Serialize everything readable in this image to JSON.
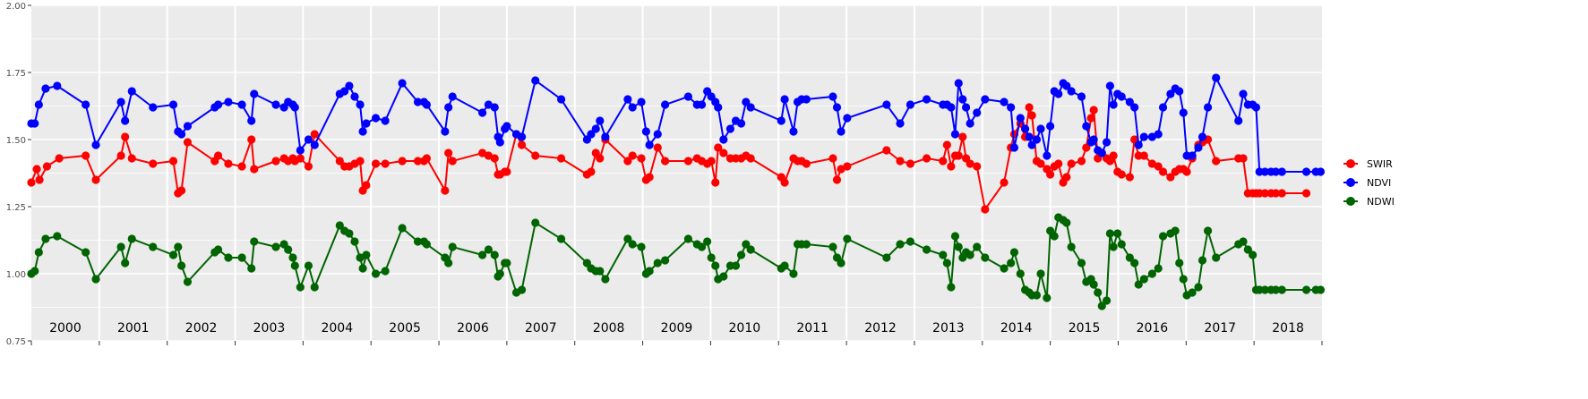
{
  "chart_data": {
    "type": "line",
    "title": "",
    "xlabel": "",
    "ylabel": "",
    "ylim": [
      0.75,
      2.0
    ],
    "yticks": [
      "0.75",
      "1.00",
      "1.25",
      "1.50",
      "1.75",
      "2.00"
    ],
    "xlim": [
      2000.0,
      2019.0
    ],
    "x_tick_labels": [
      "2000",
      "2001",
      "2002",
      "2003",
      "2004",
      "2005",
      "2006",
      "2007",
      "2008",
      "2009",
      "2010",
      "2011",
      "2012",
      "2013",
      "2014",
      "2015",
      "2016",
      "2017",
      "2018"
    ],
    "grid": true,
    "panel_color": "#ebebeb",
    "legend_position": "right",
    "series": [
      {
        "name": "SWIR",
        "color": "#ff0000",
        "x": [
          2000.0,
          2000.08,
          2000.12,
          2000.23,
          2000.41,
          2000.8,
          2000.95,
          2001.32,
          2001.38,
          2001.48,
          2001.79,
          2002.09,
          2002.16,
          2002.21,
          2002.3,
          2002.7,
          2002.75,
          2002.9,
          2003.1,
          2003.24,
          2003.28,
          2003.6,
          2003.72,
          2003.78,
          2003.85,
          2003.88,
          2003.96,
          2004.08,
          2004.17,
          2004.54,
          2004.61,
          2004.68,
          2004.76,
          2004.84,
          2004.88,
          2004.93,
          2005.07,
          2005.21,
          2005.46,
          2005.69,
          2005.78,
          2005.82,
          2006.09,
          2006.14,
          2006.2,
          2006.64,
          2006.73,
          2006.82,
          2006.87,
          2006.9,
          2006.97,
          2007.0,
          2007.14,
          2007.22,
          2007.42,
          2007.8,
          2008.18,
          2008.24,
          2008.31,
          2008.37,
          2008.45,
          2008.78,
          2008.85,
          2008.98,
          2009.05,
          2009.1,
          2009.22,
          2009.33,
          2009.67,
          2009.8,
          2009.87,
          2009.95,
          2010.01,
          2010.07,
          2010.11,
          2010.19,
          2010.29,
          2010.37,
          2010.45,
          2010.52,
          2010.59,
          2011.04,
          2011.09,
          2011.22,
          2011.28,
          2011.34,
          2011.41,
          2011.8,
          2011.86,
          2011.92,
          2012.01,
          2012.59,
          2012.79,
          2012.94,
          2013.18,
          2013.42,
          2013.48,
          2013.54,
          2013.6,
          2013.65,
          2013.71,
          2013.76,
          2013.82,
          2013.92,
          2014.04,
          2014.32,
          2014.42,
          2014.47,
          2014.56,
          2014.63,
          2014.69,
          2014.73,
          2014.8,
          2014.86,
          2014.95,
          2015.0,
          2015.06,
          2015.12,
          2015.19,
          2015.24,
          2015.31,
          2015.46,
          2015.53,
          2015.6,
          2015.64,
          2015.7,
          2015.76,
          2015.83,
          2015.88,
          2015.93,
          2015.99,
          2016.05,
          2016.17,
          2016.24,
          2016.3,
          2016.38,
          2016.5,
          2016.59,
          2016.66,
          2016.77,
          2016.84,
          2016.9,
          2016.96,
          2017.01,
          2017.09,
          2017.18,
          2017.24,
          2017.32,
          2017.44,
          2017.77,
          2017.84,
          2017.91,
          2017.98,
          2018.03,
          2018.08,
          2018.16,
          2018.25,
          2018.32,
          2018.41,
          2018.77,
          2018.91,
          2018.98,
          2019.07,
          2019.15
        ]
      },
      {
        "name": "NDVI",
        "color": "#0000ff",
        "x": [
          2000.0,
          2000.05,
          2000.11,
          2000.21,
          2000.38,
          2000.8,
          2000.95,
          2001.32,
          2001.38,
          2001.48,
          2001.79,
          2002.09,
          2002.16,
          2002.21,
          2002.3,
          2002.7,
          2002.75,
          2002.9,
          2003.1,
          2003.24,
          2003.28,
          2003.6,
          2003.72,
          2003.78,
          2003.85,
          2003.88,
          2003.96,
          2004.08,
          2004.17,
          2004.54,
          2004.61,
          2004.68,
          2004.76,
          2004.84,
          2004.88,
          2004.93,
          2005.07,
          2005.21,
          2005.46,
          2005.69,
          2005.78,
          2005.82,
          2006.09,
          2006.14,
          2006.2,
          2006.64,
          2006.73,
          2006.82,
          2006.87,
          2006.9,
          2006.97,
          2007.0,
          2007.14,
          2007.22,
          2007.42,
          2007.8,
          2008.18,
          2008.24,
          2008.31,
          2008.37,
          2008.45,
          2008.78,
          2008.85,
          2008.98,
          2009.05,
          2009.1,
          2009.22,
          2009.33,
          2009.67,
          2009.8,
          2009.87,
          2009.95,
          2010.01,
          2010.07,
          2010.11,
          2010.19,
          2010.29,
          2010.37,
          2010.45,
          2010.52,
          2010.59,
          2011.04,
          2011.09,
          2011.22,
          2011.28,
          2011.34,
          2011.41,
          2011.8,
          2011.86,
          2011.92,
          2012.01,
          2012.59,
          2012.79,
          2012.94,
          2013.18,
          2013.42,
          2013.48,
          2013.54,
          2013.6,
          2013.65,
          2013.71,
          2013.76,
          2013.82,
          2013.92,
          2014.04,
          2014.32,
          2014.42,
          2014.47,
          2014.56,
          2014.63,
          2014.69,
          2014.73,
          2014.8,
          2014.86,
          2014.95,
          2015.0,
          2015.06,
          2015.12,
          2015.19,
          2015.24,
          2015.31,
          2015.46,
          2015.53,
          2015.6,
          2015.64,
          2015.7,
          2015.76,
          2015.83,
          2015.88,
          2015.93,
          2015.99,
          2016.05,
          2016.17,
          2016.24,
          2016.3,
          2016.38,
          2016.5,
          2016.59,
          2016.66,
          2016.77,
          2016.84,
          2016.9,
          2016.96,
          2017.01,
          2017.09,
          2017.18,
          2017.24,
          2017.32,
          2017.44,
          2017.77,
          2017.84,
          2017.91,
          2017.98,
          2018.03,
          2018.08,
          2018.16,
          2018.25,
          2018.32,
          2018.41,
          2018.77,
          2018.91,
          2018.98,
          2019.07,
          2019.15
        ]
      },
      {
        "name": "NDWI",
        "color": "#006400",
        "x": [
          2000.0,
          2000.05,
          2000.11,
          2000.21,
          2000.38,
          2000.8,
          2000.95,
          2001.32,
          2001.38,
          2001.48,
          2001.79,
          2002.09,
          2002.16,
          2002.21,
          2002.3,
          2002.7,
          2002.75,
          2002.9,
          2003.1,
          2003.24,
          2003.28,
          2003.6,
          2003.72,
          2003.78,
          2003.85,
          2003.88,
          2003.96,
          2004.08,
          2004.17,
          2004.54,
          2004.61,
          2004.68,
          2004.76,
          2004.84,
          2004.88,
          2004.93,
          2005.07,
          2005.21,
          2005.46,
          2005.69,
          2005.78,
          2005.82,
          2006.09,
          2006.14,
          2006.2,
          2006.64,
          2006.73,
          2006.82,
          2006.87,
          2006.9,
          2006.97,
          2007.0,
          2007.14,
          2007.22,
          2007.42,
          2007.8,
          2008.18,
          2008.24,
          2008.31,
          2008.37,
          2008.45,
          2008.78,
          2008.85,
          2008.98,
          2009.05,
          2009.1,
          2009.22,
          2009.33,
          2009.67,
          2009.8,
          2009.87,
          2009.95,
          2010.01,
          2010.07,
          2010.11,
          2010.19,
          2010.29,
          2010.37,
          2010.45,
          2010.52,
          2010.59,
          2011.04,
          2011.09,
          2011.22,
          2011.28,
          2011.34,
          2011.41,
          2011.8,
          2011.86,
          2011.92,
          2012.01,
          2012.59,
          2012.79,
          2012.94,
          2013.18,
          2013.42,
          2013.48,
          2013.54,
          2013.6,
          2013.65,
          2013.71,
          2013.76,
          2013.82,
          2013.92,
          2014.04,
          2014.32,
          2014.42,
          2014.47,
          2014.56,
          2014.63,
          2014.69,
          2014.73,
          2014.8,
          2014.86,
          2014.95,
          2015.0,
          2015.06,
          2015.12,
          2015.19,
          2015.24,
          2015.31,
          2015.46,
          2015.53,
          2015.6,
          2015.64,
          2015.7,
          2015.76,
          2015.83,
          2015.88,
          2015.93,
          2015.99,
          2016.05,
          2016.17,
          2016.24,
          2016.3,
          2016.38,
          2016.5,
          2016.59,
          2016.66,
          2016.77,
          2016.84,
          2016.9,
          2016.96,
          2017.01,
          2017.09,
          2017.18,
          2017.24,
          2017.32,
          2017.44,
          2017.77,
          2017.84,
          2017.91,
          2017.98,
          2018.03,
          2018.08,
          2018.16,
          2018.25,
          2018.32,
          2018.41,
          2018.77,
          2018.91,
          2018.98,
          2019.07,
          2019.15
        ]
      }
    ]
  }
}
